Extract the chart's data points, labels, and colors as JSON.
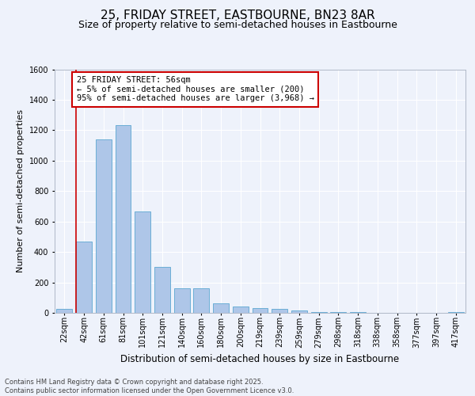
{
  "title": "25, FRIDAY STREET, EASTBOURNE, BN23 8AR",
  "subtitle": "Size of property relative to semi-detached houses in Eastbourne",
  "xlabel": "Distribution of semi-detached houses by size in Eastbourne",
  "ylabel": "Number of semi-detached properties",
  "bin_labels": [
    "22sqm",
    "42sqm",
    "61sqm",
    "81sqm",
    "101sqm",
    "121sqm",
    "140sqm",
    "160sqm",
    "180sqm",
    "200sqm",
    "219sqm",
    "239sqm",
    "259sqm",
    "279sqm",
    "298sqm",
    "318sqm",
    "338sqm",
    "358sqm",
    "377sqm",
    "397sqm",
    "417sqm"
  ],
  "values": [
    25,
    470,
    1140,
    1235,
    665,
    300,
    160,
    160,
    65,
    40,
    30,
    25,
    15,
    5,
    5,
    3,
    2,
    1,
    1,
    1,
    5
  ],
  "bar_color": "#aec6e8",
  "bar_edge_color": "#6baed6",
  "marker_line_color": "#cc0000",
  "annotation_text": "25 FRIDAY STREET: 56sqm\n← 5% of semi-detached houses are smaller (200)\n95% of semi-detached houses are larger (3,968) →",
  "annotation_box_facecolor": "#ffffff",
  "annotation_box_edgecolor": "#cc0000",
  "ylim": [
    0,
    1600
  ],
  "yticks": [
    0,
    200,
    400,
    600,
    800,
    1000,
    1200,
    1400,
    1600
  ],
  "background_color": "#eef2fb",
  "grid_color": "#ffffff",
  "footer_text": "Contains HM Land Registry data © Crown copyright and database right 2025.\nContains public sector information licensed under the Open Government Licence v3.0.",
  "title_fontsize": 11,
  "subtitle_fontsize": 9,
  "xlabel_fontsize": 8.5,
  "ylabel_fontsize": 8,
  "tick_fontsize": 7,
  "annotation_fontsize": 7.5,
  "footer_fontsize": 6
}
